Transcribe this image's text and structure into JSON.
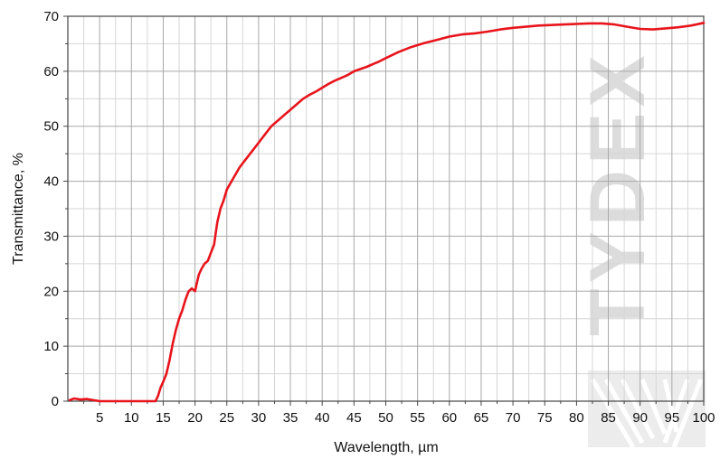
{
  "chart_data": {
    "type": "line",
    "xlabel": "Wavelength, µm",
    "ylabel": "Transmittance, %",
    "xlim": [
      0,
      100
    ],
    "ylim": [
      0,
      70
    ],
    "x_ticks": [
      5,
      10,
      15,
      20,
      25,
      30,
      35,
      40,
      45,
      50,
      55,
      60,
      65,
      70,
      75,
      80,
      85,
      90,
      95,
      100
    ],
    "y_ticks": [
      0,
      10,
      20,
      30,
      40,
      50,
      60,
      70
    ],
    "x_tick_labels": [
      "5",
      "10",
      "15",
      "20",
      "25",
      "30",
      "35",
      "40",
      "45",
      "50",
      "55",
      "60",
      "65",
      "70",
      "75",
      "80",
      "85",
      "90",
      "95",
      "100"
    ],
    "y_tick_labels": [
      "0",
      "10",
      "20",
      "30",
      "40",
      "50",
      "60",
      "70"
    ],
    "grid": true,
    "minor_grid": true,
    "series": [
      {
        "color": "#e8141c",
        "x": [
          0.3,
          1,
          2,
          3,
          5,
          8,
          10,
          12,
          13,
          13.8,
          14.2,
          14.6,
          15,
          15.5,
          16,
          16.5,
          17,
          17.5,
          18,
          18.5,
          19,
          19.5,
          20,
          20.6,
          21,
          21.5,
          22,
          22.5,
          23,
          23.5,
          24,
          24.5,
          25,
          25.5,
          26,
          27,
          28,
          29,
          30,
          31,
          32,
          33,
          34,
          35,
          36,
          37,
          38,
          39,
          40,
          41,
          42,
          43,
          44,
          45,
          46,
          47,
          48,
          49,
          50,
          52,
          54,
          56,
          58,
          60,
          62,
          64,
          66,
          68,
          70,
          72,
          74,
          76,
          78,
          80,
          82,
          84,
          86,
          88,
          90,
          92,
          94,
          96,
          98,
          100
        ],
        "y": [
          0.2,
          0.5,
          0.3,
          0.4,
          0,
          0,
          0,
          0,
          0,
          0,
          1,
          2.5,
          3.5,
          5,
          7.5,
          10.5,
          13,
          15,
          16.5,
          18.5,
          20,
          20.5,
          20,
          23,
          24,
          25,
          25.5,
          27,
          28.5,
          32.5,
          35,
          36.5,
          38.5,
          39.5,
          40.5,
          42.5,
          44,
          45.5,
          47,
          48.5,
          50,
          51,
          52,
          53,
          54,
          55,
          55.7,
          56.3,
          57,
          57.7,
          58.3,
          58.8,
          59.3,
          60,
          60.4,
          60.8,
          61.3,
          61.8,
          62.4,
          63.5,
          64.4,
          65.1,
          65.7,
          66.3,
          66.7,
          66.9,
          67.2,
          67.6,
          67.9,
          68.1,
          68.3,
          68.4,
          68.5,
          68.6,
          68.7,
          68.7,
          68.5,
          68.1,
          67.7,
          67.6,
          67.8,
          68,
          68.3,
          68.8
        ]
      }
    ]
  },
  "watermark": {
    "text": "TYDEX",
    "color": "#dcdcdc"
  }
}
